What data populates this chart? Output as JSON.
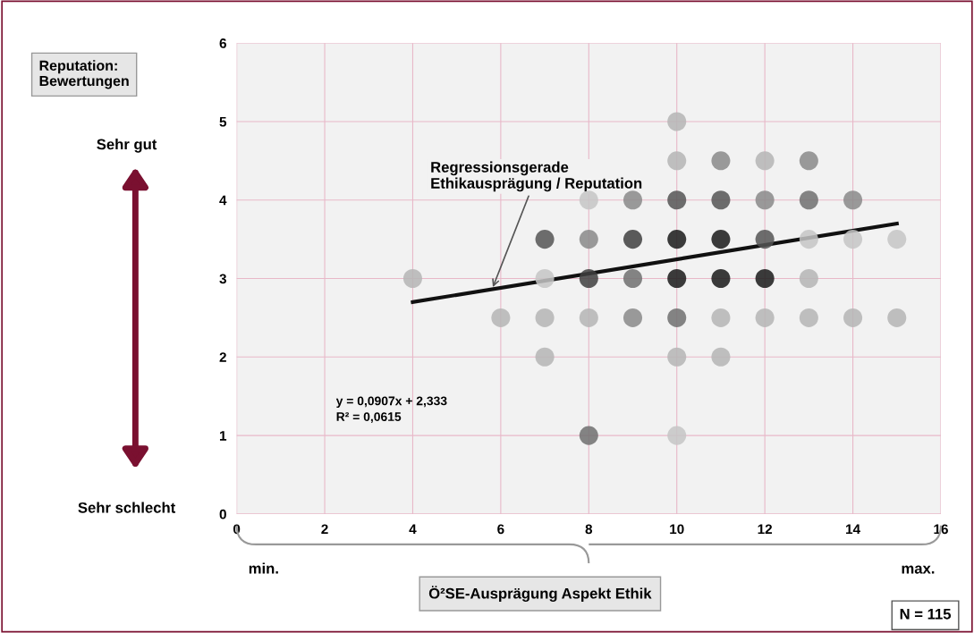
{
  "chart_data": {
    "type": "scatter",
    "title": "Reputation:\nBewertungen",
    "xlabel": "Ö²SE-Ausprägung Aspekt Ethik",
    "series": [
      {
        "x": [
          10,
          10,
          11,
          12,
          13,
          8,
          9,
          10,
          11,
          12,
          13,
          14,
          7,
          8,
          9,
          10,
          11,
          12,
          13,
          14,
          15,
          4,
          7,
          8,
          9,
          10,
          11,
          12,
          13,
          6,
          7,
          8,
          9,
          10,
          11,
          12,
          13,
          14,
          15,
          7,
          10,
          11,
          8,
          10
        ],
        "values": [
          5,
          4.5,
          4.5,
          4.5,
          4.5,
          4,
          4,
          4,
          4,
          4,
          4,
          4,
          3.5,
          3.5,
          3.5,
          3.5,
          3.5,
          3.5,
          3.5,
          3.5,
          3.5,
          3,
          3,
          3,
          3,
          3,
          3,
          3,
          3,
          2.5,
          2.5,
          2.5,
          2.5,
          2.5,
          2.5,
          2.5,
          2.5,
          2.5,
          2.5,
          2,
          2,
          2,
          1,
          1
        ],
        "colors": [
          "#b5b5b5",
          "#b5b5b5",
          "#8a8a8a",
          "#b5b5b5",
          "#8a8a8a",
          "#c5c5c5",
          "#8a8a8a",
          "#555555",
          "#555555",
          "#8a8a8a",
          "#707070",
          "#8a8a8a",
          "#555555",
          "#8a8a8a",
          "#404040",
          "#1a1a1a",
          "#1a1a1a",
          "#555555",
          "#c5c5c5",
          "#c5c5c5",
          "#c5c5c5",
          "#b5b5b5",
          "#c5c5c5",
          "#404040",
          "#707070",
          "#1a1a1a",
          "#1a1a1a",
          "#1a1a1a",
          "#b5b5b5",
          "#b5b5b5",
          "#b5b5b5",
          "#b5b5b5",
          "#8a8a8a",
          "#707070",
          "#b5b5b5",
          "#b5b5b5",
          "#b5b5b5",
          "#b5b5b5",
          "#b5b5b5",
          "#b5b5b5",
          "#b5b5b5",
          "#b5b5b5",
          "#707070",
          "#c5c5c5"
        ]
      },
      {
        "type": "line",
        "x": [
          4,
          15
        ],
        "values": [
          2.7,
          3.7
        ],
        "color": "#111111",
        "marker": "none"
      }
    ],
    "xlim": [
      0,
      16
    ],
    "xticks": [
      0,
      2,
      4,
      6,
      8,
      10,
      12,
      14,
      16
    ],
    "ylim": [
      0,
      6
    ],
    "yticks": [
      0,
      1,
      2,
      3,
      4,
      5,
      6
    ],
    "grid": true,
    "marker": "circle",
    "annotations": [
      {
        "text": "Regressionsgerade\nEthikausprägung / Reputation",
        "x": 5.8,
        "y": 2.86
      },
      "y = 0,0907x + 2,333",
      "R² = 0,0615",
      "Sehr gut",
      "Sehr schlecht",
      "min.",
      "max.",
      "N = 115"
    ]
  }
}
